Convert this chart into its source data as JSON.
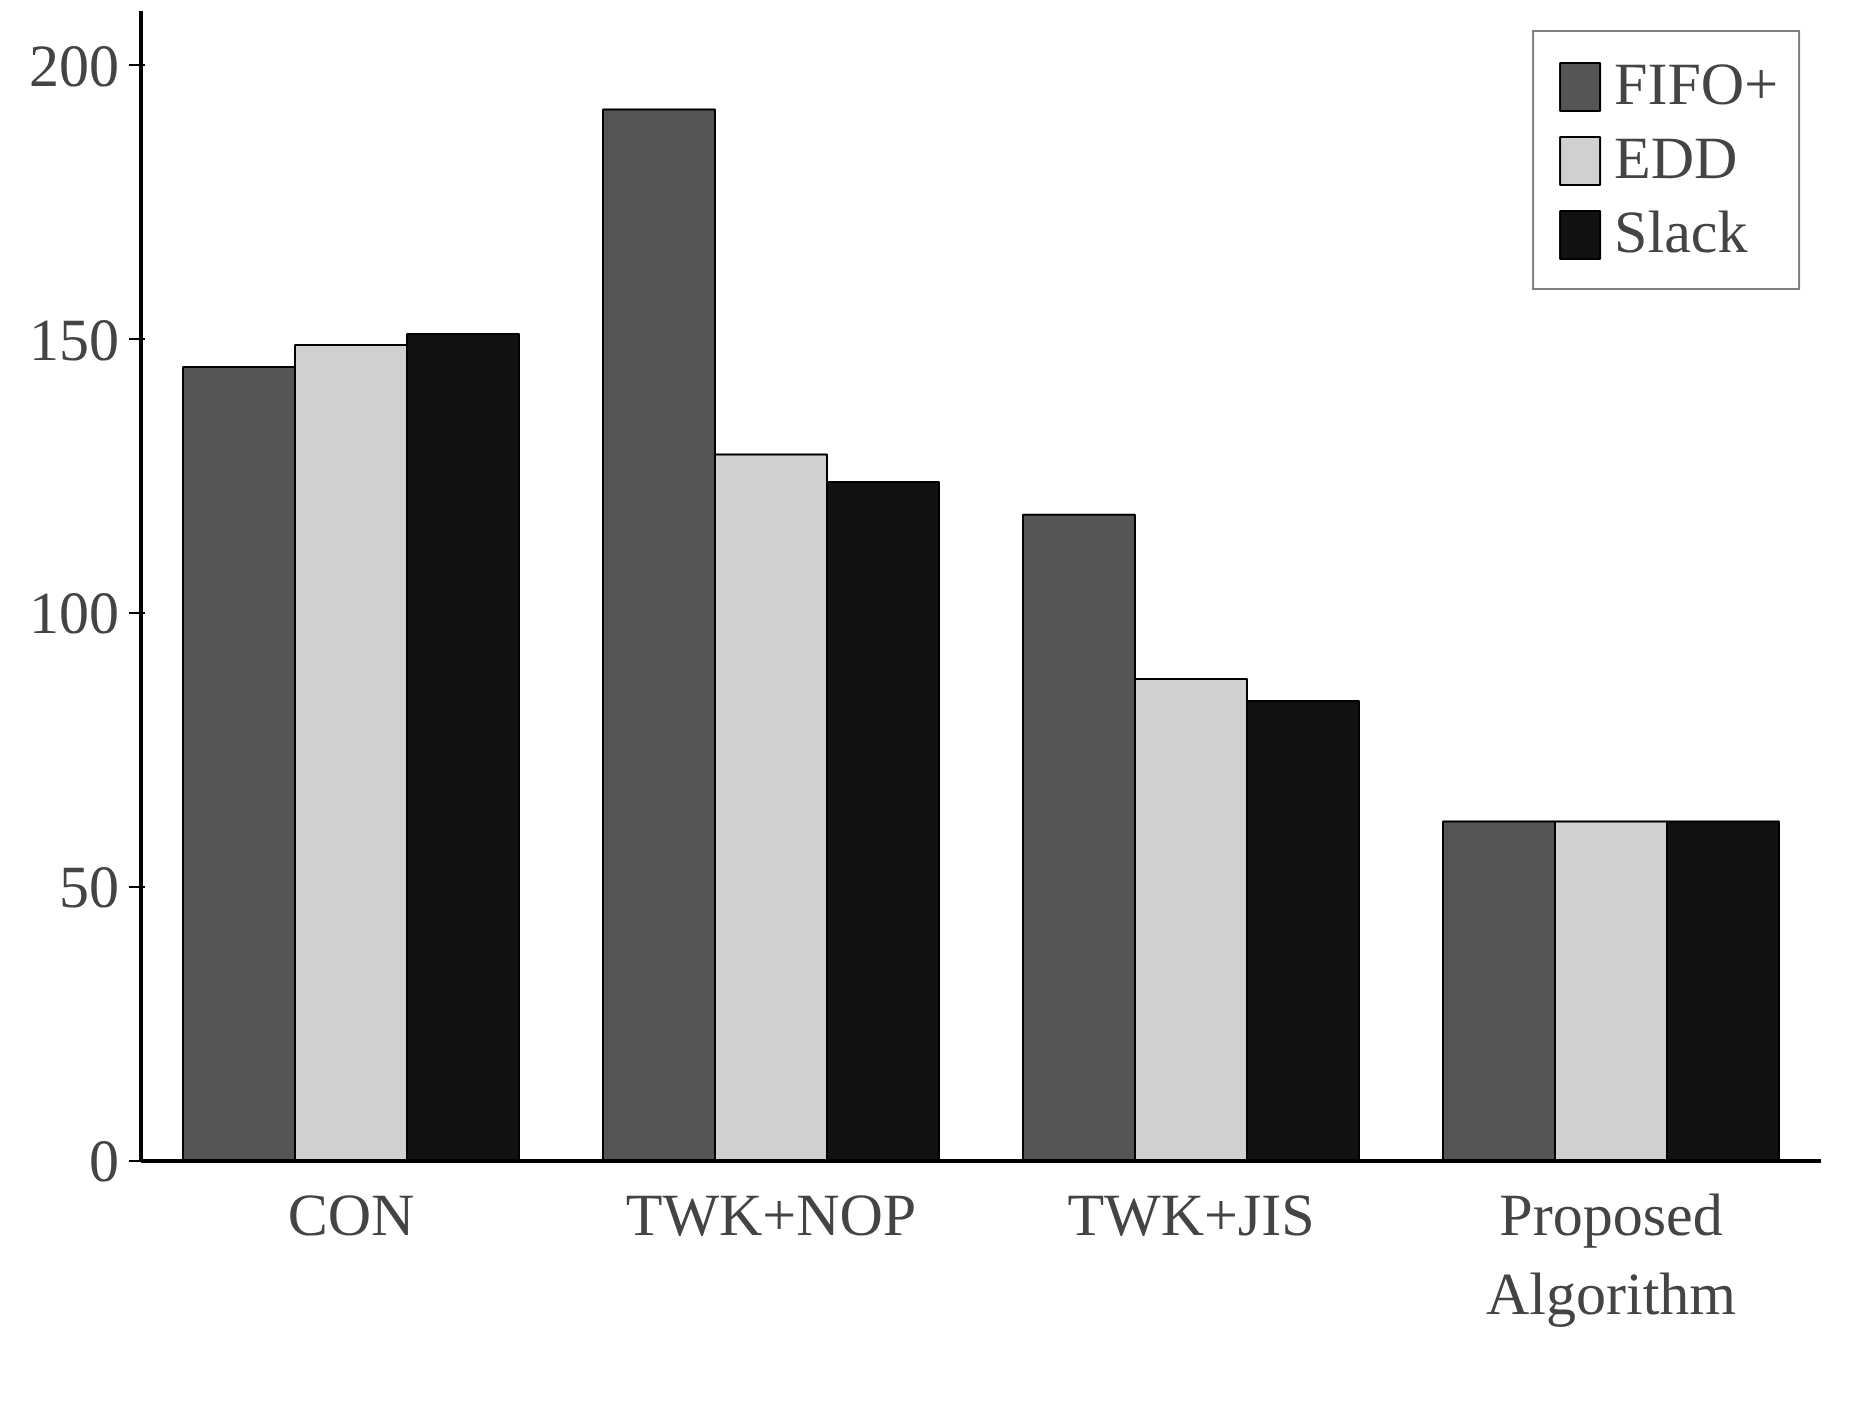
{
  "chart_data": {
    "type": "bar",
    "categories": [
      "CON",
      "TWK+NOP",
      "TWK+JIS",
      "Proposed\nAlgorithm"
    ],
    "series": [
      {
        "name": "FIFO+",
        "color": "#555555",
        "values": [
          145,
          192,
          118,
          62
        ]
      },
      {
        "name": "EDD",
        "color": "#d0d0d0",
        "values": [
          149,
          129,
          88,
          62
        ]
      },
      {
        "name": "Slack",
        "color": "#111111",
        "values": [
          151,
          124,
          84,
          62
        ]
      }
    ],
    "ylim": [
      0,
      210
    ],
    "yticks": [
      0,
      50,
      100,
      150,
      200
    ],
    "grid": false,
    "legend": "top right"
  }
}
